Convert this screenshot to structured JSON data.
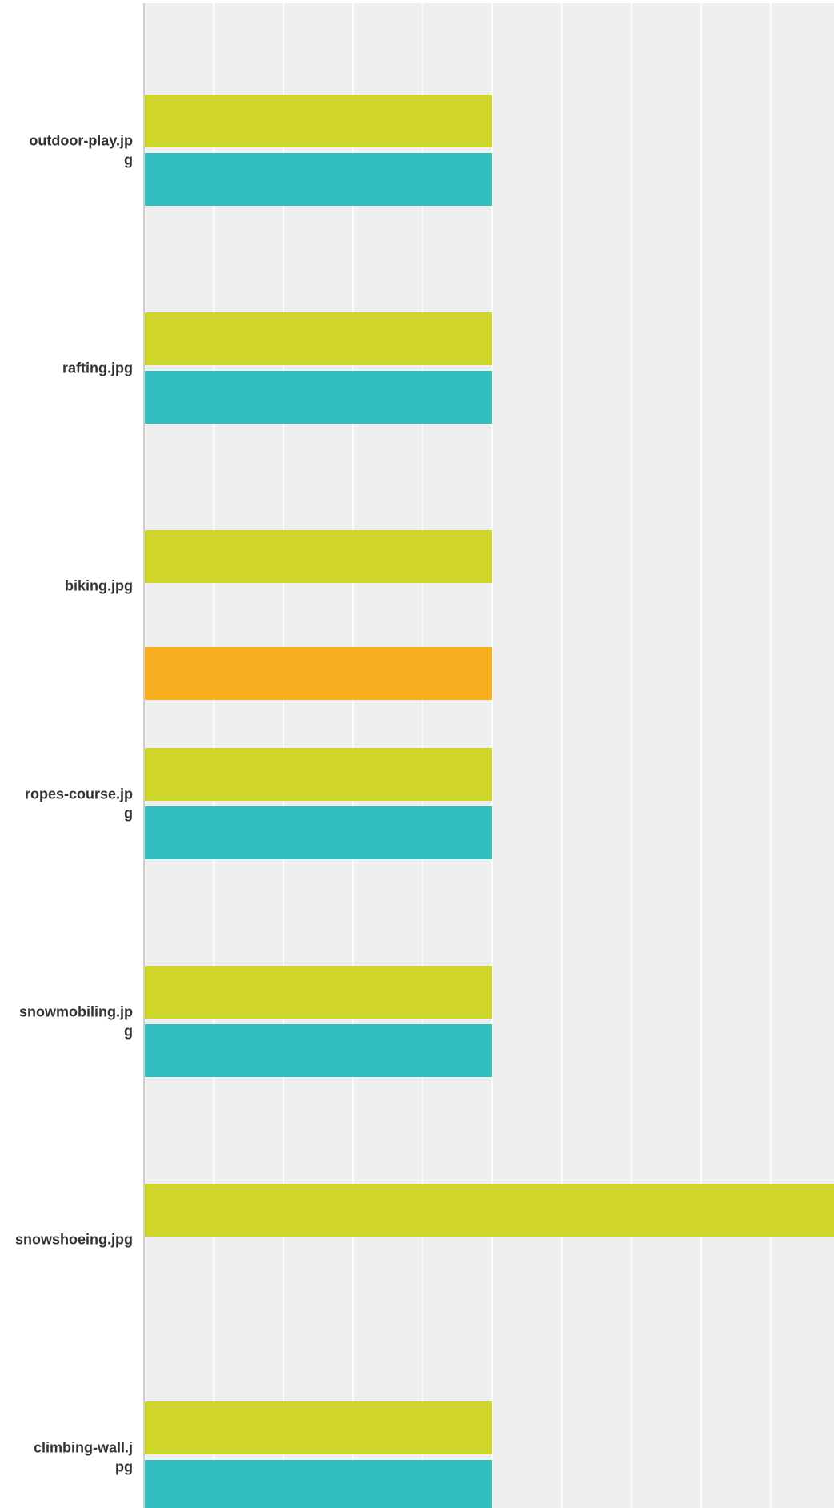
{
  "chart_data": {
    "type": "bar",
    "orientation": "horizontal",
    "categories": [
      {
        "label": [
          "outdoor-play.jp",
          "g"
        ]
      },
      {
        "label": [
          "rafting.jpg"
        ]
      },
      {
        "label": [
          "biking.jpg"
        ]
      },
      {
        "label": [
          "ropes-course.jp",
          "g"
        ]
      },
      {
        "label": [
          "snowmobiling.jp",
          "g"
        ]
      },
      {
        "label": [
          "snowshoeing.jpg"
        ]
      },
      {
        "label": [
          "climbing-wall.j",
          "pg"
        ]
      }
    ],
    "series": [
      {
        "color": "#cfd629",
        "values": [
          5,
          5,
          5,
          5,
          5,
          10,
          5
        ]
      },
      {
        "color": "#33bebf",
        "values": [
          5,
          5,
          null,
          5,
          5,
          null,
          5
        ]
      },
      {
        "color": "#f7af20",
        "values": [
          null,
          null,
          5,
          null,
          null,
          null,
          null
        ]
      }
    ],
    "xlim": [
      0,
      10
    ],
    "grid": true,
    "plot_background": "#efefef",
    "gridline_color": "#ffffff",
    "axis_line_color": "#cfcfcf"
  }
}
